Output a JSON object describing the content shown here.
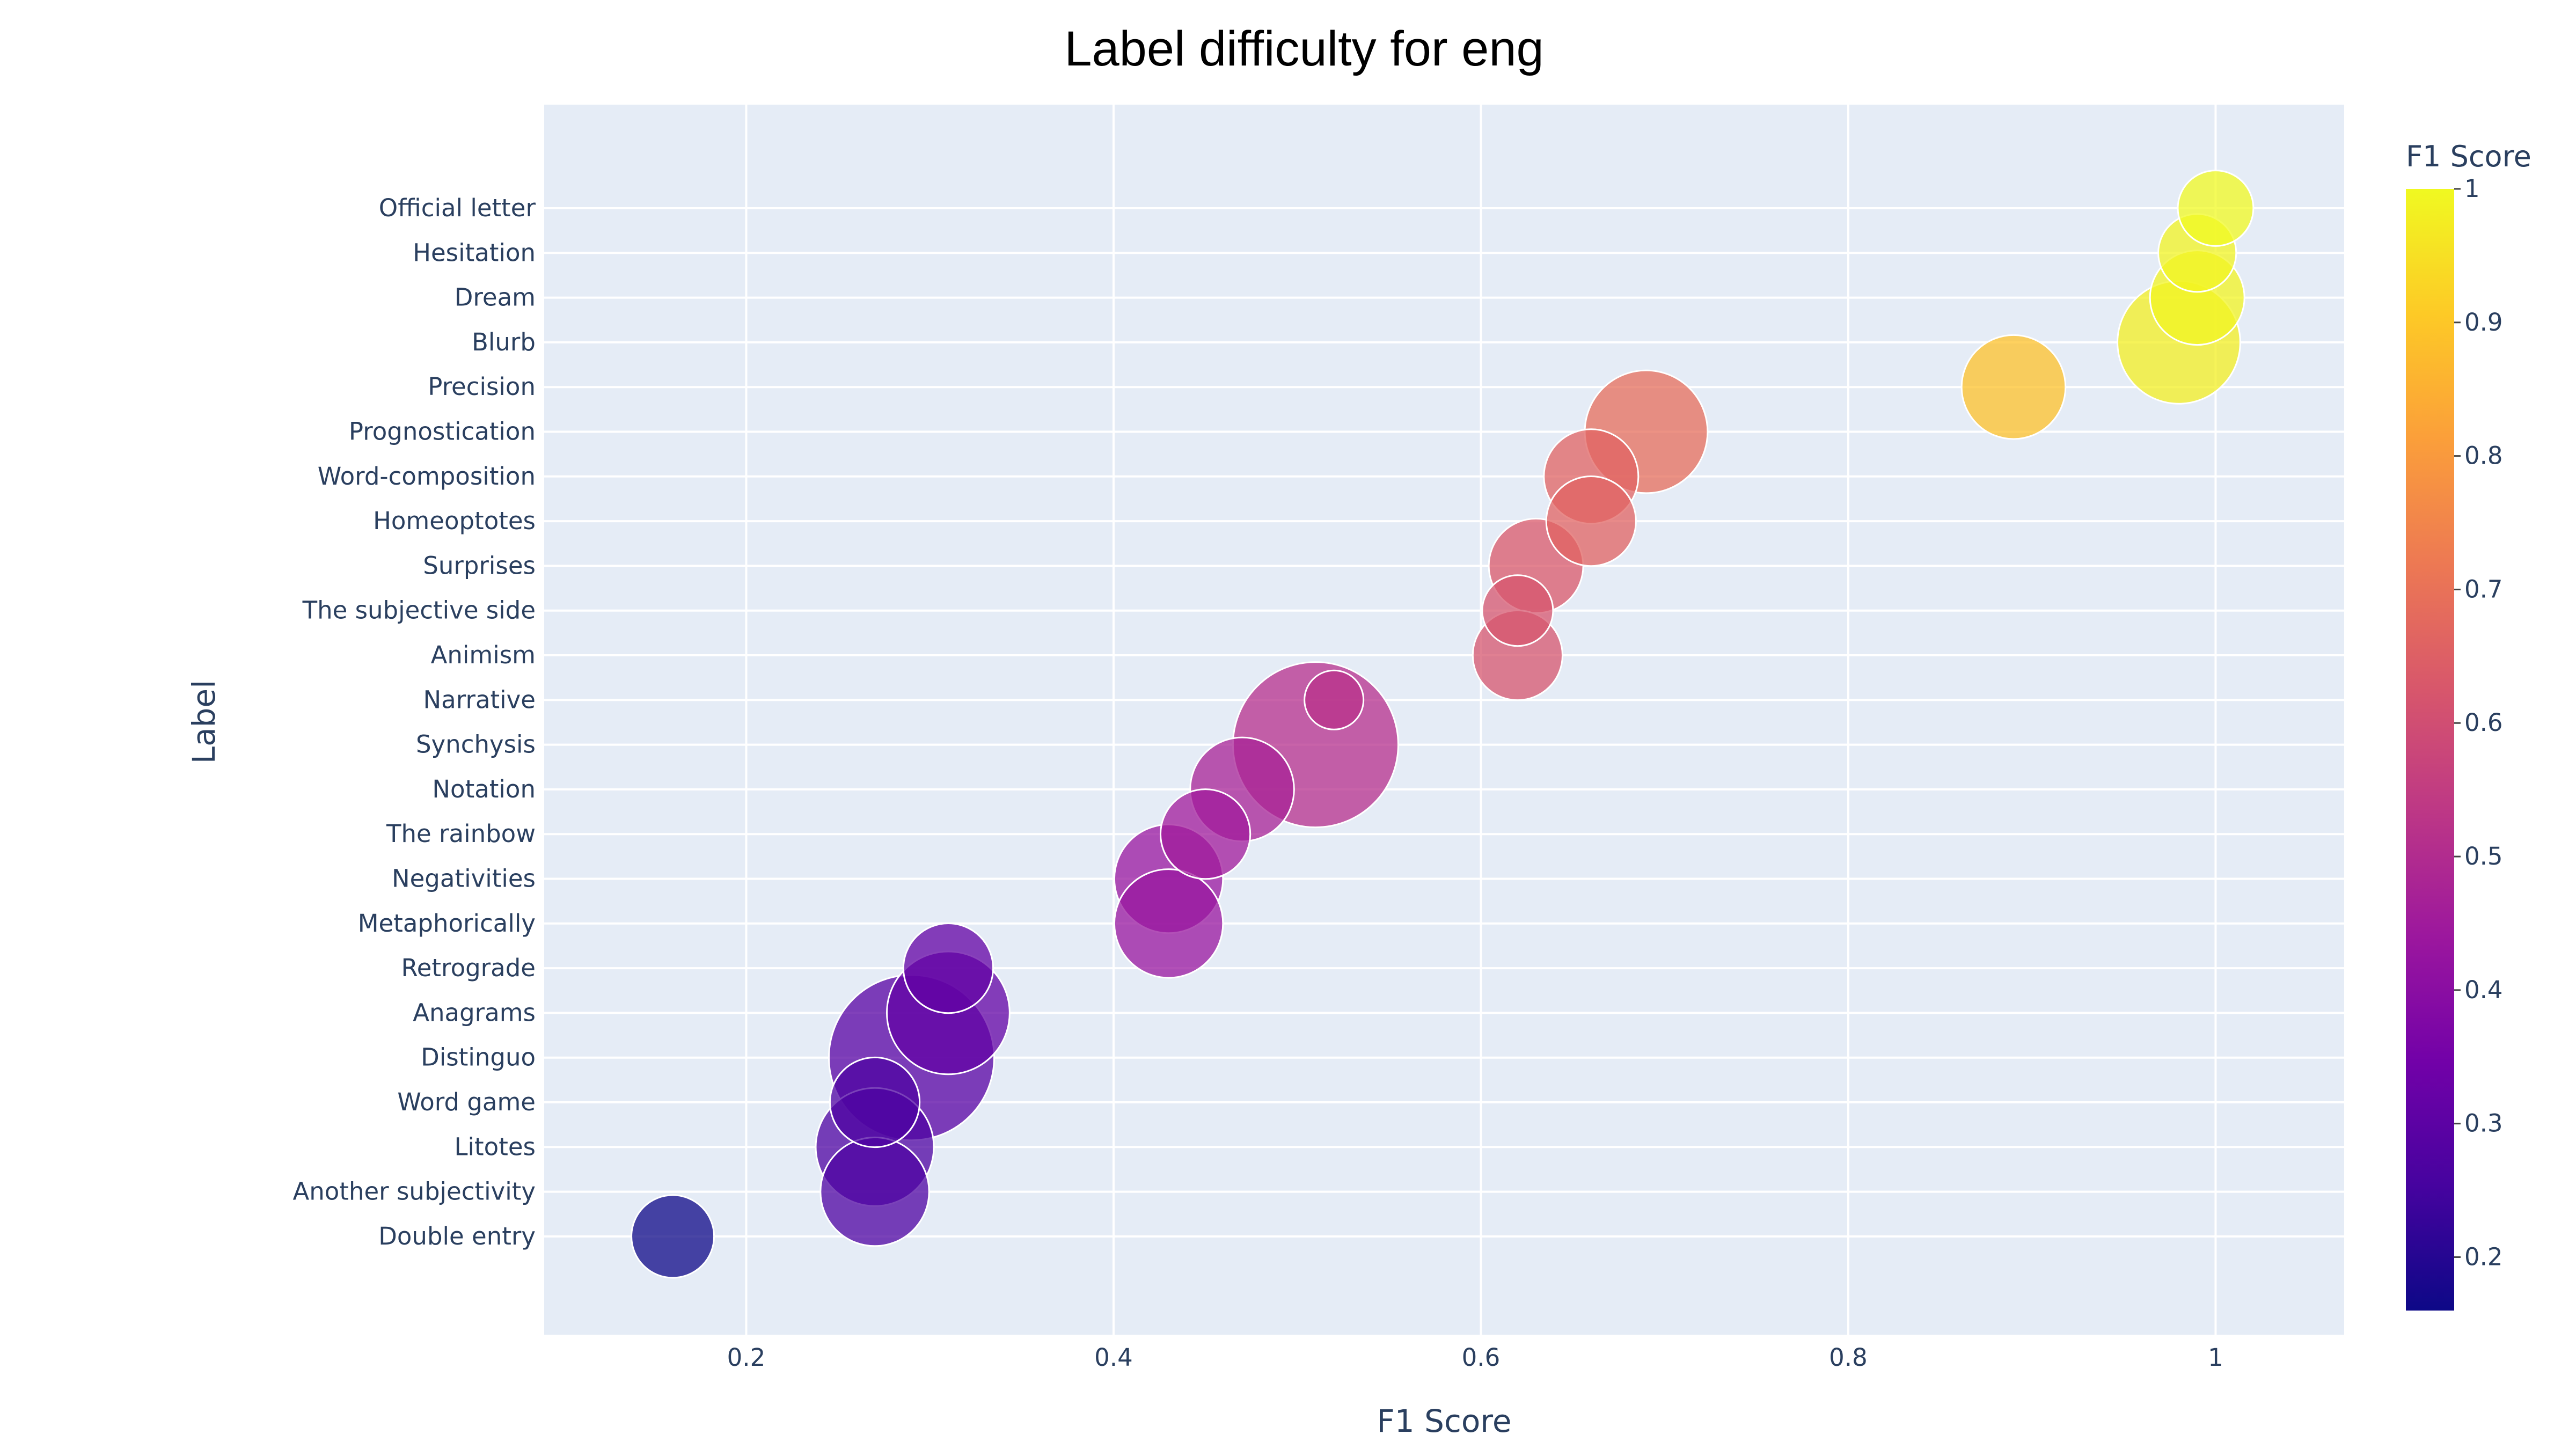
{
  "chart_data": {
    "type": "scatter",
    "title": "Label difficulty for eng",
    "xlabel": "F1 Score",
    "ylabel": "Label",
    "xlim": [
      0.09,
      1.07
    ],
    "x_ticks": [
      0.2,
      0.4,
      0.6,
      0.8,
      1
    ],
    "x_tick_labels": [
      "0.2",
      "0.4",
      "0.6",
      "0.8",
      "1"
    ],
    "grid": true,
    "colorbar": {
      "title": "F1 Score",
      "range": [
        0.16,
        1.0
      ],
      "ticks": [
        0.2,
        0.3,
        0.4,
        0.5,
        0.6,
        0.7,
        0.8,
        0.9,
        1
      ],
      "tick_labels": [
        "0.2",
        "0.3",
        "0.4",
        "0.5",
        "0.6",
        "0.7",
        "0.8",
        "0.9",
        "1"
      ],
      "colors": [
        "#0d0887",
        "#46039f",
        "#7201a8",
        "#9c179e",
        "#bd3786",
        "#d8576b",
        "#ed7953",
        "#fb9f3a",
        "#fdca26",
        "#f0f921"
      ]
    },
    "marker_opacity": 0.75,
    "marker_outline": "#ffffff",
    "background": "#e5ecf6",
    "points": [
      {
        "label": "Official letter",
        "x": 1.0,
        "size": 32
      },
      {
        "label": "Hesitation",
        "x": 0.99,
        "size": 33
      },
      {
        "label": "Dream",
        "x": 0.99,
        "size": 40
      },
      {
        "label": "Blurb",
        "x": 0.98,
        "size": 52
      },
      {
        "label": "Precision",
        "x": 0.89,
        "size": 44
      },
      {
        "label": "Prognostication",
        "x": 0.69,
        "size": 52
      },
      {
        "label": "Word-composition",
        "x": 0.66,
        "size": 40
      },
      {
        "label": "Homeoptotes",
        "x": 0.66,
        "size": 38
      },
      {
        "label": "Surprises",
        "x": 0.63,
        "size": 40
      },
      {
        "label": "The subjective side",
        "x": 0.62,
        "size": 30
      },
      {
        "label": "Animism",
        "x": 0.62,
        "size": 38
      },
      {
        "label": "Narrative",
        "x": 0.52,
        "size": 25
      },
      {
        "label": "Synchysis",
        "x": 0.51,
        "size": 70
      },
      {
        "label": "Notation",
        "x": 0.47,
        "size": 44
      },
      {
        "label": "The rainbow",
        "x": 0.45,
        "size": 38
      },
      {
        "label": "Negativities",
        "x": 0.43,
        "size": 46
      },
      {
        "label": "Metaphorically",
        "x": 0.43,
        "size": 46
      },
      {
        "label": "Retrograde",
        "x": 0.31,
        "size": 38
      },
      {
        "label": "Anagrams",
        "x": 0.31,
        "size": 52
      },
      {
        "label": "Distinguo",
        "x": 0.29,
        "size": 70
      },
      {
        "label": "Word game",
        "x": 0.27,
        "size": 38
      },
      {
        "label": "Litotes",
        "x": 0.27,
        "size": 50
      },
      {
        "label": "Another subjectivity",
        "x": 0.27,
        "size": 46
      },
      {
        "label": "Double entry",
        "x": 0.16,
        "size": 35
      }
    ]
  }
}
